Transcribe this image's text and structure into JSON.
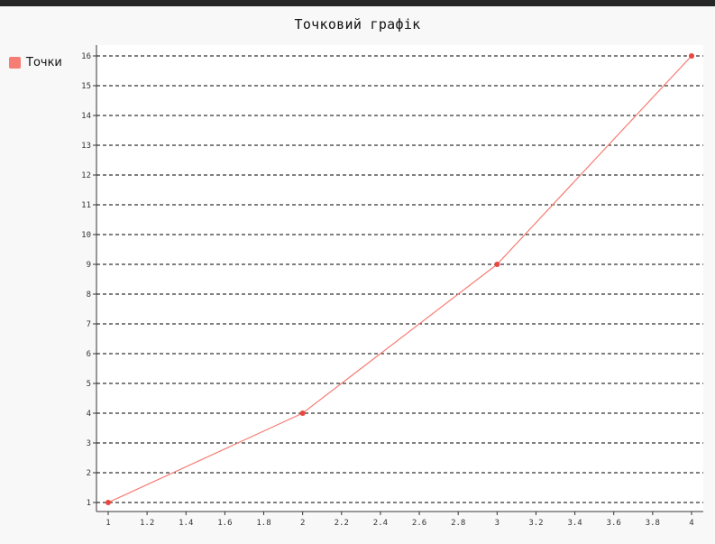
{
  "chart_data": {
    "type": "line",
    "title": "Точковий графік",
    "xlabel": "",
    "ylabel": "",
    "xlim": [
      1,
      4
    ],
    "ylim": [
      1,
      16
    ],
    "x_ticks": [
      "1",
      "1.2",
      "1.4",
      "1.6",
      "1.8",
      "2",
      "2.2",
      "2.4",
      "2.6",
      "2.8",
      "3",
      "3.2",
      "3.4",
      "3.6",
      "3.8",
      "4"
    ],
    "y_ticks": [
      "1",
      "2",
      "3",
      "4",
      "5",
      "6",
      "7",
      "8",
      "9",
      "10",
      "11",
      "12",
      "13",
      "14",
      "15",
      "16"
    ],
    "grid": "horizontal-dashed",
    "legend_position": "left",
    "series": [
      {
        "name": "Точки",
        "color": "#f67d74",
        "x": [
          1,
          2,
          3,
          4
        ],
        "y": [
          1,
          4,
          9,
          16
        ]
      }
    ]
  }
}
